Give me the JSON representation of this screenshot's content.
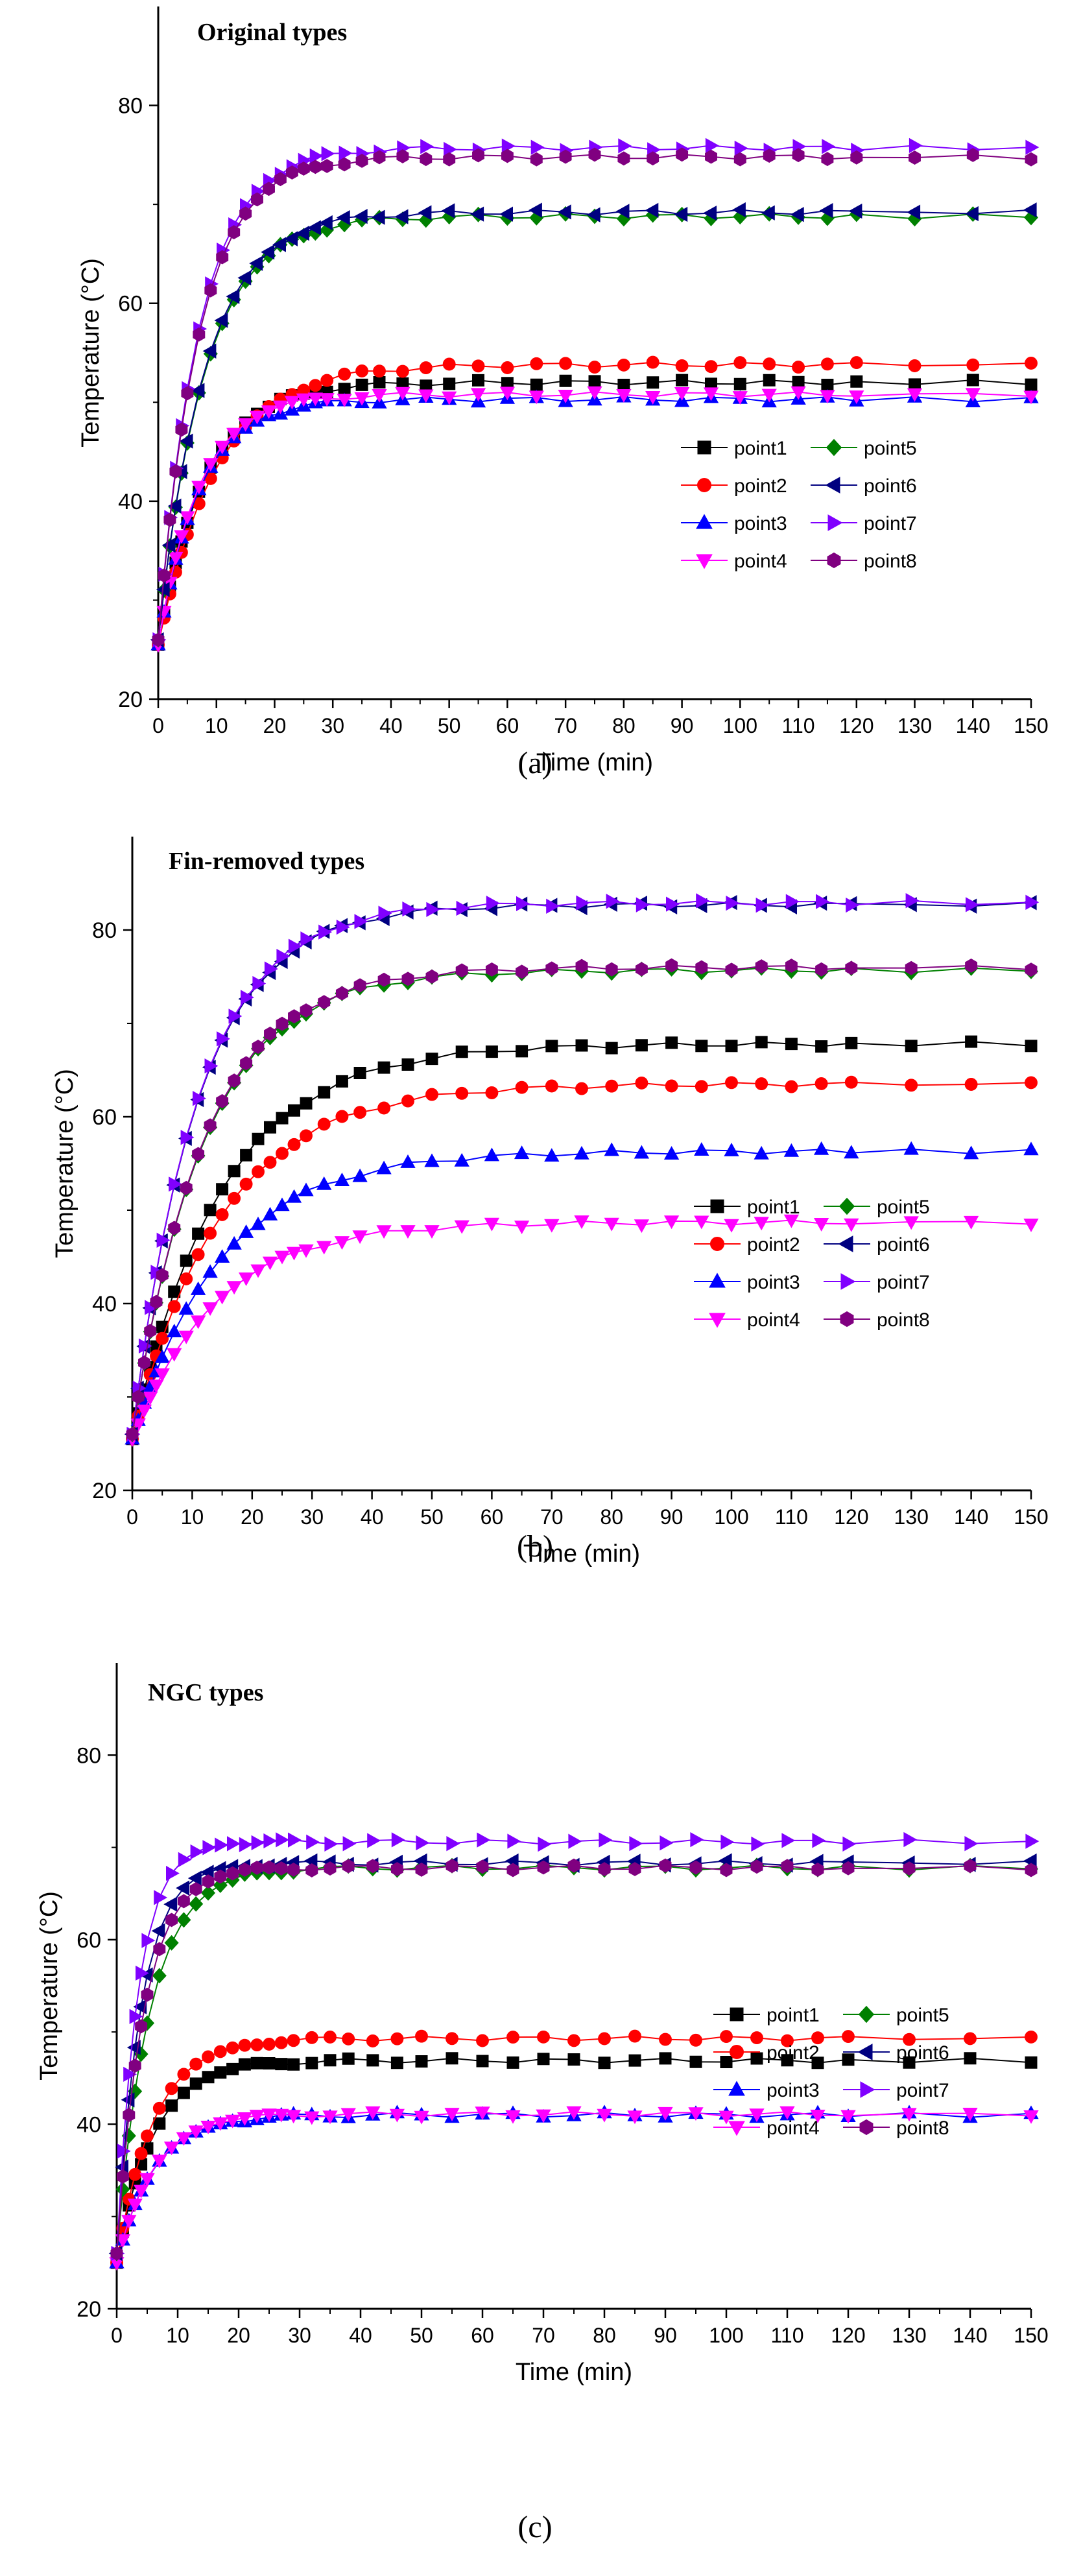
{
  "figure": {
    "x_axis_title": "Time (min)",
    "y_axis_title": "Temperature (°C)"
  },
  "chart_data": [
    {
      "type": "line",
      "panel_label": "(a)",
      "title": "Original types",
      "xlabel": "Time (min)",
      "ylabel": "Temperature (°C)",
      "xlim": [
        0,
        150
      ],
      "ylim": [
        20,
        90
      ],
      "xticks": [
        0,
        10,
        20,
        30,
        40,
        50,
        60,
        70,
        80,
        90,
        100,
        110,
        120,
        130,
        140,
        150
      ],
      "yticks": [
        20,
        40,
        60,
        80
      ],
      "legend_position": "right",
      "series": [
        {
          "name": "point1",
          "color": "#000000",
          "marker": "square",
          "start": 25.5,
          "final": 52.0,
          "tau": 8.0
        },
        {
          "name": "point2",
          "color": "#ff0000",
          "marker": "circle",
          "start": 25.5,
          "final": 53.8,
          "tau": 10.0
        },
        {
          "name": "point3",
          "color": "#0000ff",
          "marker": "triangle-up",
          "start": 25.5,
          "final": 50.3,
          "tau": 7.0
        },
        {
          "name": "point4",
          "color": "#ff00ff",
          "marker": "triangle-down",
          "start": 25.5,
          "final": 50.8,
          "tau": 7.0
        },
        {
          "name": "point5",
          "color": "#008000",
          "marker": "diamond",
          "start": 26.0,
          "final": 68.8,
          "tau": 8.0
        },
        {
          "name": "point6",
          "color": "#000080",
          "marker": "triangle-left",
          "start": 26.0,
          "final": 69.2,
          "tau": 8.0
        },
        {
          "name": "point7",
          "color": "#8000ff",
          "marker": "triangle-right",
          "start": 26.0,
          "final": 75.7,
          "tau": 7.0
        },
        {
          "name": "point8",
          "color": "#800080",
          "marker": "hexagon",
          "start": 26.0,
          "final": 74.8,
          "tau": 7.0
        }
      ]
    },
    {
      "type": "line",
      "panel_label": "(b)",
      "title": "Fin-removed types",
      "xlabel": "Time (min)",
      "ylabel": "Temperature (°C)",
      "xlim": [
        0,
        150
      ],
      "ylim": [
        20,
        90
      ],
      "xticks": [
        0,
        10,
        20,
        30,
        40,
        50,
        60,
        70,
        80,
        90,
        100,
        110,
        120,
        130,
        140,
        150
      ],
      "yticks": [
        20,
        40,
        60,
        80
      ],
      "legend_position": "right",
      "series": [
        {
          "name": "point1",
          "color": "#000000",
          "marker": "square",
          "start": 25.5,
          "final": 67.8,
          "tau": 15.0
        },
        {
          "name": "point2",
          "color": "#ff0000",
          "marker": "circle",
          "start": 25.5,
          "final": 63.5,
          "tau": 15.0
        },
        {
          "name": "point3",
          "color": "#0000ff",
          "marker": "triangle-up",
          "start": 25.5,
          "final": 56.3,
          "tau": 15.0
        },
        {
          "name": "point4",
          "color": "#ff00ff",
          "marker": "triangle-down",
          "start": 25.5,
          "final": 48.7,
          "tau": 14.0
        },
        {
          "name": "point5",
          "color": "#008000",
          "marker": "diamond",
          "start": 26.0,
          "final": 75.7,
          "tau": 12.0
        },
        {
          "name": "point6",
          "color": "#000080",
          "marker": "triangle-left",
          "start": 26.0,
          "final": 82.7,
          "tau": 11.0
        },
        {
          "name": "point7",
          "color": "#8000ff",
          "marker": "triangle-right",
          "start": 26.0,
          "final": 82.9,
          "tau": 11.0
        },
        {
          "name": "point8",
          "color": "#800080",
          "marker": "hexagon",
          "start": 26.0,
          "final": 76.0,
          "tau": 12.0
        }
      ]
    },
    {
      "type": "line",
      "panel_label": "(c)",
      "title": "NGC types",
      "xlabel": "Time (min)",
      "ylabel": "Temperature (°C)",
      "xlim": [
        0,
        150
      ],
      "ylim": [
        20,
        90
      ],
      "xticks": [
        0,
        10,
        20,
        30,
        40,
        50,
        60,
        70,
        80,
        90,
        100,
        110,
        120,
        130,
        140,
        150
      ],
      "yticks": [
        20,
        40,
        60,
        80
      ],
      "legend_position": "right",
      "series": [
        {
          "name": "point1",
          "color": "#000000",
          "marker": "square",
          "start": 25.0,
          "final": 46.9,
          "tau": 6.0
        },
        {
          "name": "point2",
          "color": "#ff0000",
          "marker": "circle",
          "start": 25.0,
          "final": 49.3,
          "tau": 6.0
        },
        {
          "name": "point3",
          "color": "#0000ff",
          "marker": "triangle-up",
          "start": 25.0,
          "final": 41.0,
          "tau": 6.0
        },
        {
          "name": "point4",
          "color": "#ff00ff",
          "marker": "triangle-down",
          "start": 25.0,
          "final": 41.1,
          "tau": 6.0
        },
        {
          "name": "point5",
          "color": "#008000",
          "marker": "diamond",
          "start": 26.0,
          "final": 67.8,
          "tau": 5.5
        },
        {
          "name": "point6",
          "color": "#000080",
          "marker": "triangle-left",
          "start": 26.0,
          "final": 68.3,
          "tau": 4.0
        },
        {
          "name": "point7",
          "color": "#8000ff",
          "marker": "triangle-right",
          "start": 26.0,
          "final": 70.6,
          "tau": 3.5
        },
        {
          "name": "point8",
          "color": "#800080",
          "marker": "hexagon",
          "start": 26.0,
          "final": 67.8,
          "tau": 4.5
        }
      ]
    }
  ]
}
